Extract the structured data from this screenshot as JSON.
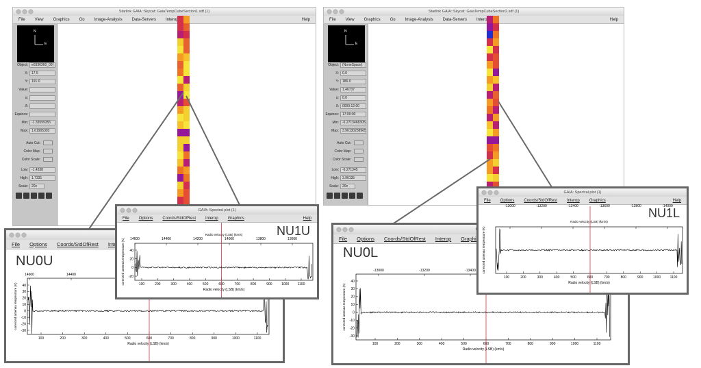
{
  "skycat": [
    {
      "title": "Starlink GAIA::Skycat: GaiaTempCubeSection1.sdf (1)",
      "menu": [
        "File",
        "View",
        "Graphics",
        "Go",
        "Image-Analysis",
        "Data-Servers",
        "Interop"
      ],
      "help": "Help",
      "compass": [
        "N",
        "E"
      ],
      "fields": [
        {
          "label": "Object:",
          "value": "e0336360_00)"
        },
        {
          "label": "X:",
          "value": "17.5"
        },
        {
          "label": "Y:",
          "value": "191.0"
        },
        {
          "label": "Value:"
        },
        {
          "label": "α:"
        },
        {
          "label": "δ:"
        },
        {
          "label": "Equinox:"
        },
        {
          "label": "Min:",
          "value": "-1.33599355"
        },
        {
          "label": "Max:",
          "value": "1.61905393"
        }
      ],
      "controls": [
        "Auto Cut:",
        "Color Map:",
        "Color Scale:"
      ],
      "limits": [
        {
          "label": "Low:",
          "value": "-1.4338"
        },
        {
          "label": "High:",
          "value": "1.7331"
        },
        {
          "label": "Scale:",
          "value": "20x"
        }
      ]
    },
    {
      "title": "Starlink GAIA::Skycat: GaiaTempCubeSection2.sdf (1)",
      "menu": [
        "File",
        "View",
        "Graphics",
        "Go",
        "Image-Analysis",
        "Data-Servers",
        "Interop"
      ],
      "help": "Help",
      "compass": [
        "N",
        "E"
      ],
      "fields": [
        {
          "label": "Object:",
          "value": "(NoneSpace)"
        },
        {
          "label": "X:",
          "value": "0.0"
        },
        {
          "label": "Y:",
          "value": "186.0"
        },
        {
          "label": "Value:",
          "value": "1.46737"
        },
        {
          "label": "α:",
          "value": "0.0"
        },
        {
          "label": "δ:",
          "value": "0000:12:00"
        },
        {
          "label": "Equinox:",
          "value": "17:00:00"
        },
        {
          "label": "Min:",
          "value": "-6.2713468305"
        },
        {
          "label": "Max:",
          "value": "3.96130238965"
        }
      ],
      "controls": [
        "Auto Cut:",
        "Color Map:",
        "Color Scale:"
      ],
      "limits": [
        {
          "label": "Low:",
          "value": "-6.271345"
        },
        {
          "label": "High:",
          "value": "3.96135"
        },
        {
          "label": "Scale:",
          "value": "20x"
        }
      ]
    }
  ],
  "spectral": [
    {
      "label": "NU0U",
      "menu": [
        "File",
        "Options",
        "Coords/StdOfRest",
        "Interop"
      ],
      "top_ticks": [
        14600,
        14400
      ],
      "yticks": [
        40,
        30,
        20,
        10,
        0,
        -10,
        -20,
        -30
      ],
      "bottom_ticks": [
        100,
        200,
        300,
        400,
        500,
        600,
        700,
        800,
        900,
        1000,
        1100
      ],
      "x_axis_label": "Radio velocity (LSB) (km/s)",
      "y_axis_label": "corrected antenna temperature (K)"
    },
    {
      "label": "NU1U",
      "title": "GAIA: Spectral plot (1)",
      "menu": [
        "File",
        "Options",
        "Coords/StdOfRest",
        "Interop",
        "Graphics"
      ],
      "help": "Help",
      "top_axis_label": "Radio velocity (LSB) (km/s)",
      "top_ticks": [
        14600,
        14400,
        14200,
        14000,
        13800,
        13600
      ],
      "yticks": [
        40,
        20,
        0,
        -20
      ],
      "bottom_ticks": [
        100,
        200,
        300,
        400,
        500,
        600,
        700,
        800,
        900,
        1000,
        1100
      ],
      "x_axis_label": "Radio velocity (LSB) (km/s)",
      "y_axis_label": "corrected antenna temperature (K)"
    },
    {
      "label": "NU0L",
      "title": "GAIA:",
      "menu": [
        "File",
        "Options",
        "Coords/StdOfRest",
        "Interop",
        "Graphics"
      ],
      "top_ticks": [
        -13000,
        -13200,
        -13400
      ],
      "yticks": [
        40,
        30,
        20,
        10,
        0,
        -10,
        -20,
        -30
      ],
      "bottom_ticks": [
        100,
        200,
        300,
        400,
        500,
        600,
        700,
        800,
        900,
        1000,
        1100
      ],
      "x_axis_label": "Radio velocity (LSB) (km/s)",
      "y_axis_label": "corrected antenna temperature (K)"
    },
    {
      "label": "NU1L",
      "title": "GAIA: Spectral plot (1)",
      "menu": [
        "File",
        "Options",
        "Coords/StdOfRest",
        "Interop",
        "Graphics"
      ],
      "help": "Help",
      "top_axis_label": "Radio velocity (LSB) (km/s)",
      "top_ticks": [
        -13000,
        -13200,
        -13400,
        -13600,
        -13800,
        -14000
      ],
      "bottom_ticks": [
        100,
        200,
        300,
        400,
        500,
        600,
        700,
        800,
        900,
        1000,
        1100
      ],
      "x_axis_label": "Radio velocity (LSB) (km/s)",
      "y_axis_label": "corrected antenna temperature (K)"
    }
  ]
}
